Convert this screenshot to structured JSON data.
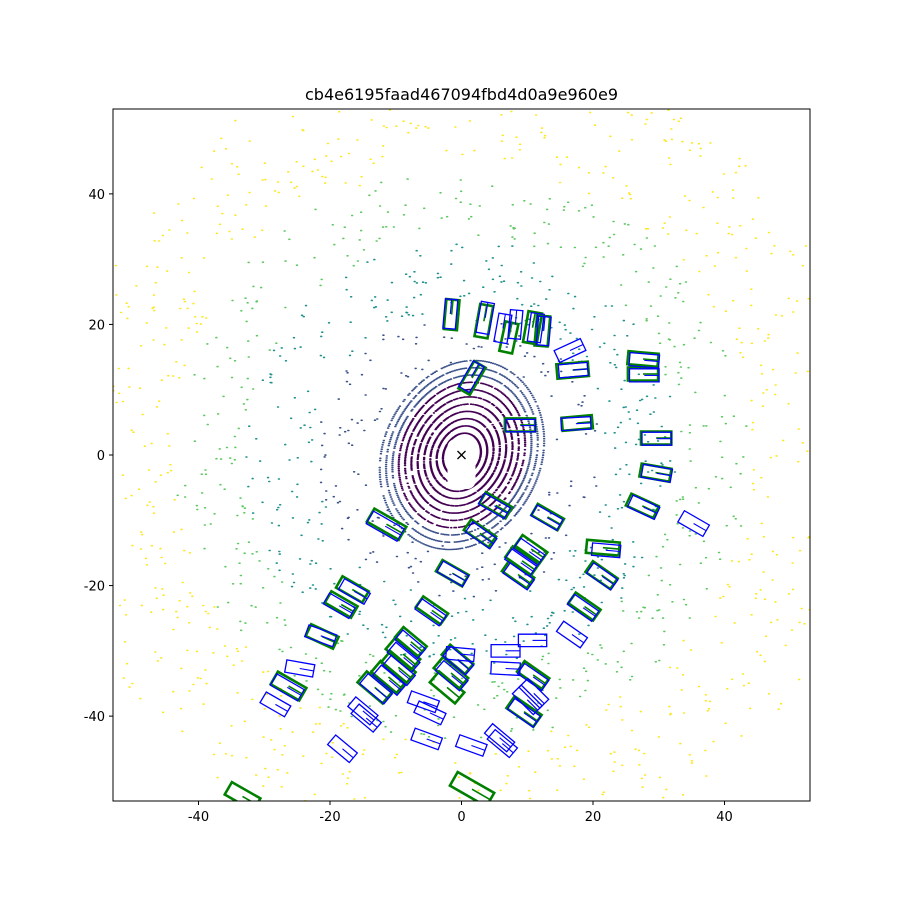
{
  "chart_data": {
    "type": "scatter",
    "title": "cb4e6195faad467094fbd4d0a9e960e9",
    "xlabel": "",
    "ylabel": "",
    "xlim": [
      -53,
      53
    ],
    "ylim": [
      -53,
      53
    ],
    "grid": false,
    "x_ticks": [
      -40,
      -20,
      0,
      20,
      40
    ],
    "y_ticks": [
      -40,
      -20,
      0,
      20,
      40
    ],
    "ego_marker": {
      "symbol": "x",
      "x": 0,
      "y": 0,
      "color": "#000000"
    },
    "colors": {
      "ground_truth_box": "#008000",
      "predicted_box": "#0000ff",
      "lidar_colormap": [
        "#440154",
        "#3b528b",
        "#21918c",
        "#5ec962",
        "#fde725"
      ]
    },
    "series": [
      {
        "kind": "ground_truth_boxes",
        "color": "#008000",
        "boxes": [
          {
            "cx": -1.5,
            "cy": 21.5,
            "w": 2.0,
            "l": 4.6,
            "yaw": 85
          },
          {
            "cx": 3.4,
            "cy": 20.5,
            "w": 2.0,
            "l": 5.0,
            "yaw": 80
          },
          {
            "cx": 7.2,
            "cy": 18.0,
            "w": 2.0,
            "l": 4.6,
            "yaw": 78
          },
          {
            "cx": 10.8,
            "cy": 19.5,
            "w": 2.1,
            "l": 4.8,
            "yaw": 80
          },
          {
            "cx": 12.3,
            "cy": 19.0,
            "w": 2.0,
            "l": 4.6,
            "yaw": 85
          },
          {
            "cx": 1.6,
            "cy": 11.8,
            "w": 2.0,
            "l": 4.8,
            "yaw": 60
          },
          {
            "cx": 16.9,
            "cy": 13.0,
            "w": 2.2,
            "l": 4.8,
            "yaw": 5
          },
          {
            "cx": 27.6,
            "cy": 14.7,
            "w": 2.0,
            "l": 4.6,
            "yaw": -5
          },
          {
            "cx": 27.6,
            "cy": 12.4,
            "w": 2.0,
            "l": 4.6,
            "yaw": 0
          },
          {
            "cx": 8.9,
            "cy": 4.6,
            "w": 2.0,
            "l": 4.6,
            "yaw": 0
          },
          {
            "cx": 17.6,
            "cy": 4.9,
            "w": 2.0,
            "l": 4.6,
            "yaw": 5
          },
          {
            "cx": 29.6,
            "cy": 2.6,
            "w": 2.0,
            "l": 4.6,
            "yaw": 0
          },
          {
            "cx": 29.5,
            "cy": -2.7,
            "w": 2.0,
            "l": 4.6,
            "yaw": -10
          },
          {
            "cx": 27.5,
            "cy": -7.8,
            "w": 2.0,
            "l": 4.6,
            "yaw": -25
          },
          {
            "cx": 5.2,
            "cy": -7.7,
            "w": 2.0,
            "l": 4.6,
            "yaw": -30
          },
          {
            "cx": 13.1,
            "cy": -9.5,
            "w": 2.0,
            "l": 4.6,
            "yaw": -30
          },
          {
            "cx": -11.4,
            "cy": -10.6,
            "w": 2.3,
            "l": 5.6,
            "yaw": -30
          },
          {
            "cx": 2.8,
            "cy": -12.0,
            "w": 2.0,
            "l": 4.6,
            "yaw": -35
          },
          {
            "cx": 10.6,
            "cy": -14.4,
            "w": 2.0,
            "l": 4.6,
            "yaw": -35
          },
          {
            "cx": 9.2,
            "cy": -16.2,
            "w": 2.0,
            "l": 4.8,
            "yaw": -35
          },
          {
            "cx": 21.5,
            "cy": -14.2,
            "w": 2.0,
            "l": 5.0,
            "yaw": -5
          },
          {
            "cx": -1.4,
            "cy": -18.1,
            "w": 2.0,
            "l": 4.6,
            "yaw": -30
          },
          {
            "cx": 8.6,
            "cy": -18.3,
            "w": 2.0,
            "l": 4.6,
            "yaw": -35
          },
          {
            "cx": 21.3,
            "cy": -18.4,
            "w": 2.0,
            "l": 4.6,
            "yaw": -35
          },
          {
            "cx": -16.6,
            "cy": -20.6,
            "w": 2.0,
            "l": 4.6,
            "yaw": -30
          },
          {
            "cx": -18.3,
            "cy": -22.9,
            "w": 2.0,
            "l": 4.6,
            "yaw": -30
          },
          {
            "cx": -4.5,
            "cy": -23.8,
            "w": 2.0,
            "l": 4.6,
            "yaw": -35
          },
          {
            "cx": 18.7,
            "cy": -23.2,
            "w": 2.0,
            "l": 4.6,
            "yaw": -35
          },
          {
            "cx": -21.2,
            "cy": -27.8,
            "w": 2.0,
            "l": 4.6,
            "yaw": -25
          },
          {
            "cx": -7.7,
            "cy": -28.6,
            "w": 2.0,
            "l": 4.6,
            "yaw": -40
          },
          {
            "cx": -8.9,
            "cy": -30.5,
            "w": 2.2,
            "l": 5.0,
            "yaw": -40
          },
          {
            "cx": -9.6,
            "cy": -32.5,
            "w": 2.2,
            "l": 5.0,
            "yaw": -40
          },
          {
            "cx": -11.1,
            "cy": -34.0,
            "w": 2.2,
            "l": 5.0,
            "yaw": -40
          },
          {
            "cx": -13.2,
            "cy": -35.6,
            "w": 2.2,
            "l": 5.0,
            "yaw": -40
          },
          {
            "cx": -0.6,
            "cy": -31.3,
            "w": 2.0,
            "l": 4.6,
            "yaw": -40
          },
          {
            "cx": -1.6,
            "cy": -33.4,
            "w": 2.2,
            "l": 5.0,
            "yaw": -40
          },
          {
            "cx": -2.2,
            "cy": -35.6,
            "w": 2.2,
            "l": 5.0,
            "yaw": -40
          },
          {
            "cx": 10.9,
            "cy": -33.7,
            "w": 2.0,
            "l": 4.6,
            "yaw": -35
          },
          {
            "cx": -26.3,
            "cy": -35.4,
            "w": 2.2,
            "l": 5.0,
            "yaw": -30
          },
          {
            "cx": 9.5,
            "cy": -39.3,
            "w": 2.2,
            "l": 5.0,
            "yaw": -35
          },
          {
            "cx": 1.6,
            "cy": -51.2,
            "w": 2.4,
            "l": 6.4,
            "yaw": -30
          },
          {
            "cx": -33.3,
            "cy": -52.3,
            "w": 2.2,
            "l": 5.0,
            "yaw": -30
          }
        ]
      },
      {
        "kind": "predicted_boxes",
        "color": "#0000ff",
        "boxes": [
          {
            "cx": -1.7,
            "cy": 21.6,
            "w": 1.9,
            "l": 4.5,
            "yaw": 85
          },
          {
            "cx": 3.6,
            "cy": 21.0,
            "w": 2.0,
            "l": 4.8,
            "yaw": 80
          },
          {
            "cx": 6.3,
            "cy": 19.4,
            "w": 2.0,
            "l": 4.4,
            "yaw": 80
          },
          {
            "cx": 8.2,
            "cy": 20.0,
            "w": 1.9,
            "l": 4.4,
            "yaw": 85
          },
          {
            "cx": 11.3,
            "cy": 19.5,
            "w": 2.0,
            "l": 4.4,
            "yaw": 82
          },
          {
            "cx": 12.5,
            "cy": 19.0,
            "w": 1.9,
            "l": 4.4,
            "yaw": 85
          },
          {
            "cx": 16.5,
            "cy": 16.0,
            "w": 2.0,
            "l": 4.4,
            "yaw": 25
          },
          {
            "cx": 1.5,
            "cy": 12.0,
            "w": 1.9,
            "l": 4.5,
            "yaw": 60
          },
          {
            "cx": 17.0,
            "cy": 13.0,
            "w": 2.0,
            "l": 4.4,
            "yaw": 5
          },
          {
            "cx": 27.8,
            "cy": 14.5,
            "w": 2.0,
            "l": 4.5,
            "yaw": -5
          },
          {
            "cx": 27.8,
            "cy": 12.2,
            "w": 2.0,
            "l": 4.5,
            "yaw": 0
          },
          {
            "cx": 9.0,
            "cy": 4.5,
            "w": 1.9,
            "l": 4.5,
            "yaw": 0
          },
          {
            "cx": 17.4,
            "cy": 4.8,
            "w": 1.9,
            "l": 4.5,
            "yaw": 3
          },
          {
            "cx": 29.7,
            "cy": 2.5,
            "w": 2.0,
            "l": 4.5,
            "yaw": 0
          },
          {
            "cx": 29.7,
            "cy": -2.8,
            "w": 2.0,
            "l": 4.5,
            "yaw": -10
          },
          {
            "cx": 27.7,
            "cy": -8.0,
            "w": 2.0,
            "l": 4.5,
            "yaw": -25
          },
          {
            "cx": 35.3,
            "cy": -10.5,
            "w": 2.0,
            "l": 4.4,
            "yaw": -30
          },
          {
            "cx": 5.0,
            "cy": -7.8,
            "w": 1.9,
            "l": 4.5,
            "yaw": -30
          },
          {
            "cx": 13.0,
            "cy": -9.6,
            "w": 1.9,
            "l": 4.5,
            "yaw": -30
          },
          {
            "cx": -11.6,
            "cy": -10.9,
            "w": 2.2,
            "l": 5.4,
            "yaw": -30
          },
          {
            "cx": 3.0,
            "cy": -12.3,
            "w": 1.9,
            "l": 4.5,
            "yaw": -35
          },
          {
            "cx": 10.3,
            "cy": -14.8,
            "w": 1.9,
            "l": 4.5,
            "yaw": -35
          },
          {
            "cx": 9.0,
            "cy": -16.5,
            "w": 1.9,
            "l": 4.6,
            "yaw": -35
          },
          {
            "cx": 22.0,
            "cy": -14.6,
            "w": 1.9,
            "l": 4.3,
            "yaw": -5
          },
          {
            "cx": -1.3,
            "cy": -18.2,
            "w": 1.9,
            "l": 4.5,
            "yaw": -30
          },
          {
            "cx": 8.7,
            "cy": -18.6,
            "w": 1.9,
            "l": 4.5,
            "yaw": -35
          },
          {
            "cx": 21.4,
            "cy": -18.6,
            "w": 1.9,
            "l": 4.5,
            "yaw": -35
          },
          {
            "cx": -16.3,
            "cy": -20.9,
            "w": 1.9,
            "l": 4.5,
            "yaw": -30
          },
          {
            "cx": -18.6,
            "cy": -23.1,
            "w": 1.9,
            "l": 4.5,
            "yaw": -30
          },
          {
            "cx": -4.7,
            "cy": -24.1,
            "w": 1.9,
            "l": 4.5,
            "yaw": -35
          },
          {
            "cx": 18.5,
            "cy": -23.4,
            "w": 1.9,
            "l": 4.5,
            "yaw": -35
          },
          {
            "cx": -21.4,
            "cy": -27.7,
            "w": 1.9,
            "l": 4.5,
            "yaw": -20
          },
          {
            "cx": 16.8,
            "cy": -27.5,
            "w": 1.9,
            "l": 4.4,
            "yaw": -35
          },
          {
            "cx": 10.8,
            "cy": -28.4,
            "w": 1.9,
            "l": 4.3,
            "yaw": 0
          },
          {
            "cx": -7.8,
            "cy": -29.0,
            "w": 1.9,
            "l": 4.5,
            "yaw": -40
          },
          {
            "cx": -8.8,
            "cy": -31.0,
            "w": 2.0,
            "l": 4.8,
            "yaw": -40
          },
          {
            "cx": -9.5,
            "cy": -33.0,
            "w": 2.0,
            "l": 4.8,
            "yaw": -40
          },
          {
            "cx": -11.0,
            "cy": -34.5,
            "w": 2.0,
            "l": 4.8,
            "yaw": -40
          },
          {
            "cx": -13.0,
            "cy": -35.8,
            "w": 2.0,
            "l": 4.8,
            "yaw": -40
          },
          {
            "cx": -0.5,
            "cy": -31.5,
            "w": 1.9,
            "l": 4.5,
            "yaw": -40
          },
          {
            "cx": -0.2,
            "cy": -30.5,
            "w": 1.9,
            "l": 4.3,
            "yaw": -5
          },
          {
            "cx": -1.5,
            "cy": -33.8,
            "w": 2.0,
            "l": 4.8,
            "yaw": -40
          },
          {
            "cx": 6.7,
            "cy": -30.0,
            "w": 1.9,
            "l": 4.4,
            "yaw": 0
          },
          {
            "cx": 6.7,
            "cy": -32.7,
            "w": 1.9,
            "l": 4.4,
            "yaw": -3
          },
          {
            "cx": 10.9,
            "cy": -34.0,
            "w": 1.9,
            "l": 4.5,
            "yaw": -35
          },
          {
            "cx": -24.6,
            "cy": -32.7,
            "w": 1.9,
            "l": 4.3,
            "yaw": -10
          },
          {
            "cx": -26.5,
            "cy": -35.6,
            "w": 2.0,
            "l": 4.8,
            "yaw": -30
          },
          {
            "cx": -28.3,
            "cy": -38.2,
            "w": 1.9,
            "l": 4.3,
            "yaw": -30
          },
          {
            "cx": -5.8,
            "cy": -37.8,
            "w": 1.9,
            "l": 4.5,
            "yaw": -20
          },
          {
            "cx": -4.8,
            "cy": -39.5,
            "w": 1.9,
            "l": 4.5,
            "yaw": -25
          },
          {
            "cx": -15.0,
            "cy": -39.2,
            "w": 1.9,
            "l": 4.4,
            "yaw": -40
          },
          {
            "cx": -14.5,
            "cy": -40.3,
            "w": 1.9,
            "l": 4.4,
            "yaw": -40
          },
          {
            "cx": 11.0,
            "cy": -36.5,
            "w": 1.9,
            "l": 4.5,
            "yaw": -45
          },
          {
            "cx": 10.0,
            "cy": -37.5,
            "w": 1.9,
            "l": 4.5,
            "yaw": -45
          },
          {
            "cx": 9.5,
            "cy": -39.5,
            "w": 2.0,
            "l": 4.8,
            "yaw": -35
          },
          {
            "cx": -5.3,
            "cy": -43.5,
            "w": 1.9,
            "l": 4.4,
            "yaw": -20
          },
          {
            "cx": 1.5,
            "cy": -44.5,
            "w": 1.9,
            "l": 4.4,
            "yaw": -20
          },
          {
            "cx": 5.8,
            "cy": -43.3,
            "w": 1.9,
            "l": 4.4,
            "yaw": -40
          },
          {
            "cx": 6.2,
            "cy": -44.2,
            "w": 1.9,
            "l": 4.4,
            "yaw": -40
          },
          {
            "cx": -18.1,
            "cy": -45.0,
            "w": 1.9,
            "l": 4.3,
            "yaw": -40
          }
        ]
      }
    ]
  }
}
